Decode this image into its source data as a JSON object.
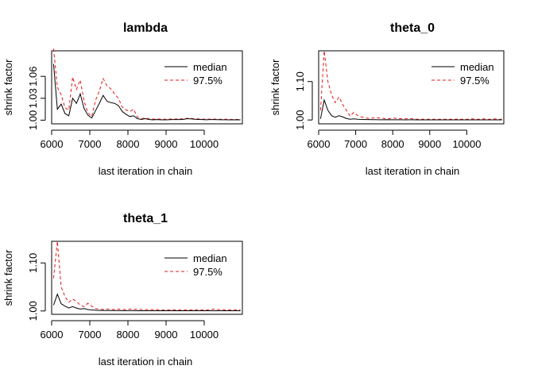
{
  "chart_data": [
    {
      "type": "line",
      "title": "lambda",
      "xlabel": "last iteration in chain",
      "ylabel": "shrink factor",
      "xlim": [
        6000,
        11000
      ],
      "ylim": [
        0.995,
        1.095
      ],
      "xticks": [
        6000,
        7000,
        8000,
        9000,
        10000
      ],
      "xtick_labels": [
        "6000",
        "7000",
        "8000",
        "9000",
        "10000"
      ],
      "yticks": [
        1.0,
        1.03,
        1.06
      ],
      "ytick_labels": [
        "1.00",
        "1.03",
        "1.06"
      ],
      "legend": {
        "position": "top-right",
        "entries": [
          "median",
          "97.5%"
        ]
      },
      "x": [
        6050,
        6150,
        6250,
        6350,
        6450,
        6550,
        6650,
        6750,
        6850,
        6950,
        7050,
        7150,
        7250,
        7350,
        7450,
        7550,
        7650,
        7750,
        7850,
        7950,
        8050,
        8150,
        8250,
        8350,
        8450,
        8550,
        8650,
        8750,
        8850,
        8950,
        9050,
        9150,
        9250,
        9350,
        9450,
        9550,
        9650,
        9750,
        9850,
        9950,
        10050,
        10150,
        10250,
        10350,
        10450,
        10550,
        10650,
        10750,
        10850,
        10950
      ],
      "series": [
        {
          "name": "median",
          "color": "#000000",
          "dash": "solid",
          "values": [
            1.077,
            1.015,
            1.022,
            1.009,
            1.006,
            1.03,
            1.023,
            1.036,
            1.016,
            1.007,
            1.003,
            1.013,
            1.023,
            1.034,
            1.026,
            1.024,
            1.023,
            1.02,
            1.012,
            1.008,
            1.005,
            1.006,
            1.002,
            1.001,
            1.002,
            1.001,
            1.0005,
            1.0008,
            1.0006,
            1.0005,
            1.0006,
            1.0008,
            1.0008,
            1.0009,
            1.001,
            1.002,
            1.0018,
            1.0012,
            1.001,
            1.0008,
            1.0006,
            1.0008,
            1.0009,
            1.0007,
            1.0006,
            1.0006,
            1.0005,
            1.0005,
            1.0006,
            1.0004
          ]
        },
        {
          "name": "97.5%",
          "color": "#e41a1c",
          "dash": "dashed",
          "values": [
            1.098,
            1.045,
            1.035,
            1.017,
            1.014,
            1.059,
            1.042,
            1.055,
            1.026,
            1.01,
            1.005,
            1.027,
            1.04,
            1.057,
            1.047,
            1.043,
            1.036,
            1.03,
            1.018,
            1.014,
            1.012,
            1.015,
            1.004,
            1.002,
            1.003,
            1.002,
            1.0015,
            1.0015,
            1.0015,
            1.0012,
            1.0015,
            1.0015,
            1.0015,
            1.0017,
            1.002,
            1.0025,
            1.0025,
            1.0018,
            1.0018,
            1.0014,
            1.0013,
            1.0014,
            1.0015,
            1.0013,
            1.0012,
            1.0012,
            1.0012,
            1.001,
            1.001,
            1.001
          ]
        }
      ]
    },
    {
      "type": "line",
      "title": "theta_0",
      "xlabel": "last iteration in chain",
      "ylabel": "shrink factor",
      "xlim": [
        6000,
        11000
      ],
      "ylim": [
        0.99,
        1.18
      ],
      "xticks": [
        6000,
        7000,
        8000,
        9000,
        10000
      ],
      "xtick_labels": [
        "6000",
        "7000",
        "8000",
        "9000",
        "10000"
      ],
      "yticks": [
        1.0,
        1.1
      ],
      "ytick_labels": [
        "1.00",
        "1.10"
      ],
      "legend": {
        "position": "top-right",
        "entries": [
          "median",
          "97.5%"
        ]
      },
      "x": [
        6050,
        6150,
        6250,
        6350,
        6450,
        6550,
        6650,
        6750,
        6850,
        6950,
        7050,
        7150,
        7250,
        7350,
        7450,
        7550,
        7650,
        7750,
        7850,
        7950,
        8050,
        8150,
        8250,
        8350,
        8450,
        8550,
        8650,
        8750,
        8850,
        8950,
        9050,
        9150,
        9250,
        9350,
        9450,
        9550,
        9650,
        9750,
        9850,
        9950,
        10050,
        10150,
        10250,
        10350,
        10450,
        10550,
        10650,
        10750,
        10850,
        10950
      ],
      "series": [
        {
          "name": "median",
          "color": "#000000",
          "dash": "solid",
          "values": [
            1.003,
            1.052,
            1.025,
            1.011,
            1.007,
            1.011,
            1.008,
            1.004,
            1.002,
            1.003,
            1.002,
            1.0015,
            1.001,
            1.001,
            1.0008,
            1.0008,
            1.0006,
            1.0006,
            1.0008,
            1.0005,
            1.0006,
            1.0006,
            1.0005,
            1.0004,
            1.0006,
            1.0005,
            1.0004,
            1.0004,
            1.0004,
            1.0003,
            1.0003,
            1.0003,
            1.0003,
            1.0003,
            1.0003,
            1.0003,
            1.0003,
            1.0003,
            1.0003,
            1.0003,
            1.0003,
            1.0003,
            1.0003,
            1.0003,
            1.0003,
            1.0003,
            1.0003,
            1.0003,
            1.0003,
            1.0003
          ]
        },
        {
          "name": "97.5%",
          "color": "#e41a1c",
          "dash": "dashed",
          "values": [
            1.025,
            1.18,
            1.1,
            1.065,
            1.045,
            1.06,
            1.04,
            1.025,
            1.01,
            1.02,
            1.012,
            1.008,
            1.006,
            1.004,
            1.005,
            1.006,
            1.005,
            1.004,
            1.003,
            1.004,
            1.005,
            1.003,
            1.004,
            1.003,
            1.004,
            1.003,
            1.002,
            1.002,
            1.002,
            1.002,
            1.002,
            1.002,
            1.002,
            1.002,
            1.002,
            1.002,
            1.0018,
            1.0022,
            1.002,
            1.002,
            1.002,
            1.003,
            1.002,
            1.002,
            1.003,
            1.002,
            1.002,
            1.003,
            1.002,
            1.002
          ]
        }
      ]
    },
    {
      "type": "line",
      "title": "theta_1",
      "xlabel": "last iteration in chain",
      "ylabel": "shrink factor",
      "xlim": [
        6000,
        11000
      ],
      "ylim": [
        0.993,
        1.145
      ],
      "xticks": [
        6000,
        7000,
        8000,
        9000,
        10000
      ],
      "xtick_labels": [
        "6000",
        "7000",
        "8000",
        "9000",
        "10000"
      ],
      "yticks": [
        1.0,
        1.1
      ],
      "ytick_labels": [
        "1.00",
        "1.10"
      ],
      "legend": {
        "position": "top-right",
        "entries": [
          "median",
          "97.5%"
        ]
      },
      "x": [
        6050,
        6150,
        6250,
        6350,
        6450,
        6550,
        6650,
        6750,
        6850,
        6950,
        7050,
        7150,
        7250,
        7350,
        7450,
        7550,
        7650,
        7750,
        7850,
        7950,
        8050,
        8150,
        8250,
        8350,
        8450,
        8550,
        8650,
        8750,
        8850,
        8950,
        9050,
        9150,
        9250,
        9350,
        9450,
        9550,
        9650,
        9750,
        9850,
        9950,
        10050,
        10150,
        10250,
        10350,
        10450,
        10550,
        10650,
        10750,
        10850,
        10950
      ],
      "series": [
        {
          "name": "median",
          "color": "#000000",
          "dash": "solid",
          "values": [
            1.012,
            1.035,
            1.015,
            1.01,
            1.006,
            1.009,
            1.006,
            1.004,
            1.005,
            1.003,
            1.002,
            1.0015,
            1.001,
            1.001,
            1.0008,
            1.0008,
            1.0008,
            1.0007,
            1.0007,
            1.0006,
            1.0006,
            1.0006,
            1.0005,
            1.0005,
            1.0005,
            1.0005,
            1.0005,
            1.0005,
            1.0004,
            1.0004,
            1.0004,
            1.0004,
            1.0004,
            1.0004,
            1.0004,
            1.0004,
            1.0004,
            1.0004,
            1.0004,
            1.0004,
            1.0004,
            1.0004,
            1.0004,
            1.0004,
            1.0004,
            1.0004,
            1.0004,
            1.0004,
            1.0004,
            1.0004
          ]
        },
        {
          "name": "97.5%",
          "color": "#e41a1c",
          "dash": "dashed",
          "values": [
            1.068,
            1.145,
            1.05,
            1.03,
            1.018,
            1.025,
            1.02,
            1.012,
            1.009,
            1.016,
            1.01,
            1.005,
            1.004,
            1.003,
            1.004,
            1.003,
            1.003,
            1.004,
            1.003,
            1.003,
            1.004,
            1.003,
            1.004,
            1.003,
            1.003,
            1.003,
            1.003,
            1.003,
            1.002,
            1.002,
            1.002,
            1.003,
            1.002,
            1.002,
            1.002,
            1.002,
            1.002,
            1.002,
            1.003,
            1.002,
            1.002,
            1.003,
            1.004,
            1.003,
            1.003,
            1.002,
            1.002,
            1.003,
            1.002,
            1.002
          ]
        }
      ]
    }
  ]
}
